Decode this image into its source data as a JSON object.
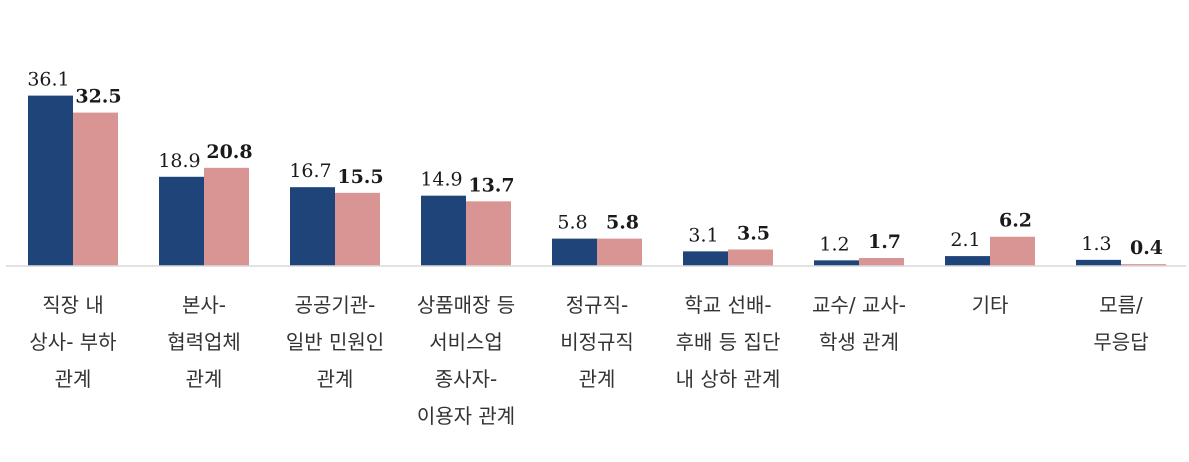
{
  "chart_data": {
    "type": "bar",
    "title": "",
    "xlabel": "",
    "ylabel": "",
    "ylim": [
      0,
      38
    ],
    "grid": false,
    "legend": "none",
    "categories": [
      [
        "직장 내",
        "상사- 부하",
        "관계"
      ],
      [
        "본사-",
        "협력업체",
        "관계"
      ],
      [
        "공공기관-",
        "일반 민원인",
        "관계"
      ],
      [
        "상품매장 등",
        "서비스업",
        "종사자-",
        "이용자 관계"
      ],
      [
        "정규직-",
        "비정규직",
        "관계"
      ],
      [
        "학교 선배-",
        "후배 등 집단",
        "내 상하 관계"
      ],
      [
        "교수/ 교사-",
        "학생 관계"
      ],
      [
        "기타"
      ],
      [
        "모름/",
        "무응답"
      ]
    ],
    "series": [
      {
        "values": [
          36.1,
          18.9,
          16.7,
          14.9,
          5.8,
          3.1,
          1.2,
          2.1,
          1.3
        ],
        "color": "#1f4479"
      },
      {
        "values": [
          32.5,
          20.8,
          15.5,
          13.7,
          5.8,
          3.5,
          1.7,
          6.2,
          0.4
        ],
        "color": "#d99594"
      }
    ],
    "value_labels": [
      [
        "36.1",
        "18.9",
        "16.7",
        "14.9",
        "5.8",
        "3.1",
        "1.2",
        "2.1",
        "1.3"
      ],
      [
        "32.5",
        "20.8",
        "15.5",
        "13.7",
        "5.8",
        "3.5",
        "1.7",
        "6.2",
        "0.4"
      ]
    ]
  }
}
